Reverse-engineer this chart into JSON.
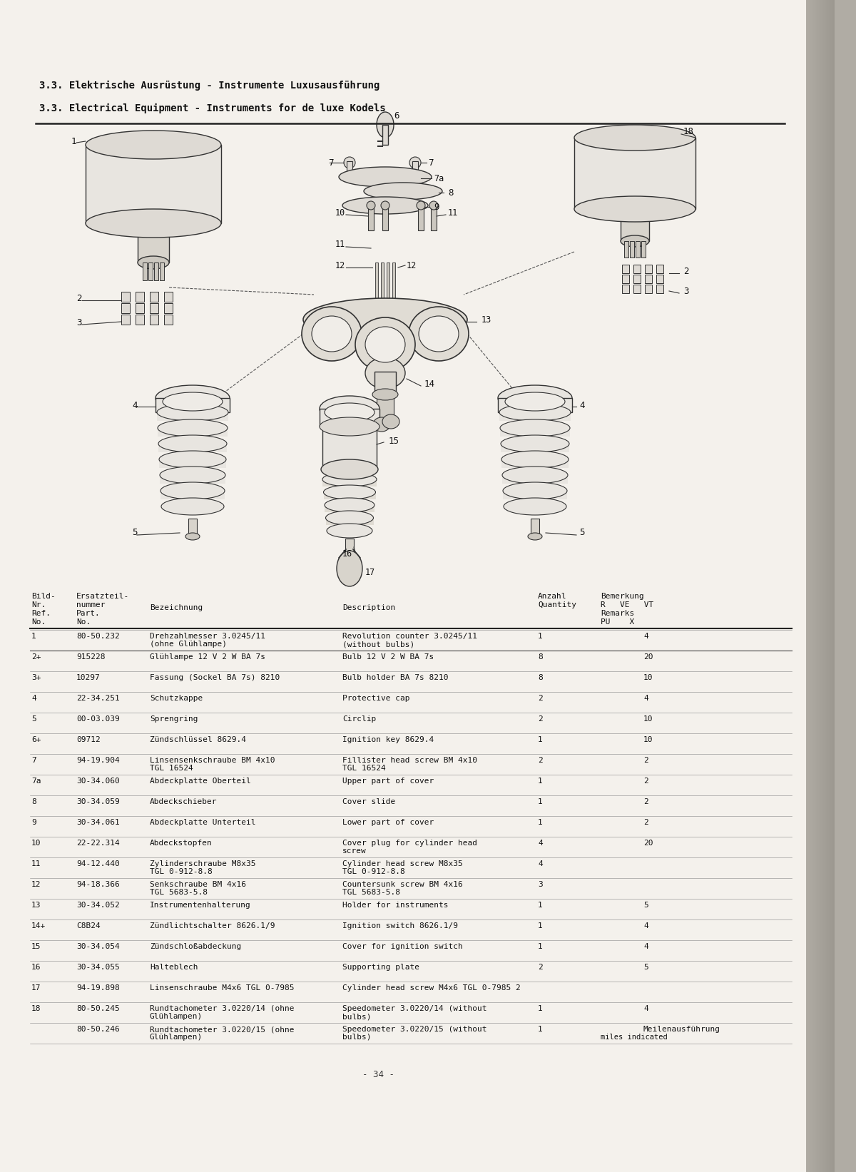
{
  "page_bg": "#f0ede8",
  "title_de": "3.3. Elektrische Ausrüstung - Instrumente Luxusausführung",
  "title_en": "3.3. Electrical Equipment - Instruments for de luxe Kodels",
  "parts": [
    {
      "no": "1",
      "part_no": "80-50.232",
      "bez": "Drehzahlmesser 3.0245/11\n(ohne Glühlampe)",
      "desc": "Revolution counter 3.0245/11\n(without bulbs)",
      "qty": "1",
      "rem": "4"
    },
    {
      "no": "2+",
      "part_no": "915228",
      "bez": "Glühlampe 12 V 2 W BA 7s",
      "desc": "Bulb 12 V 2 W BA 7s",
      "qty": "8",
      "rem": "20"
    },
    {
      "no": "3+",
      "part_no": "10297",
      "bez": "Fassung (Sockel BA 7s) 8210",
      "desc": "Bulb holder BA 7s 8210",
      "qty": "8",
      "rem": "10"
    },
    {
      "no": "4",
      "part_no": "22-34.251",
      "bez": "Schutzkappe",
      "desc": "Protective cap",
      "qty": "2",
      "rem": "4"
    },
    {
      "no": "5",
      "part_no": "00-03.039",
      "bez": "Sprengring",
      "desc": "Circlip",
      "qty": "2",
      "rem": "10"
    },
    {
      "no": "6+",
      "part_no": "09712",
      "bez": "Zündschlüssel 8629.4",
      "desc": "Ignition key 8629.4",
      "qty": "1",
      "rem": "10"
    },
    {
      "no": "7",
      "part_no": "94-19.904",
      "bez": "Linsensenkschraube BM 4x10\nTGL 16524",
      "desc": "Fillister head screw BM 4x10\nTGL 16524",
      "qty": "2",
      "rem": "2"
    },
    {
      "no": "7a",
      "part_no": "30-34.060",
      "bez": "Abdeckplatte Oberteil",
      "desc": "Upper part of cover",
      "qty": "1",
      "rem": "2"
    },
    {
      "no": "8",
      "part_no": "30-34.059",
      "bez": "Abdeckschieber",
      "desc": "Cover slide",
      "qty": "1",
      "rem": "2"
    },
    {
      "no": "9",
      "part_no": "30-34.061",
      "bez": "Abdeckplatte Unterteil",
      "desc": "Lower part of cover",
      "qty": "1",
      "rem": "2"
    },
    {
      "no": "10",
      "part_no": "22-22.314",
      "bez": "Abdeckstopfen",
      "desc": "Cover plug for cylinder head\nscrew",
      "qty": "4",
      "rem": "20"
    },
    {
      "no": "11",
      "part_no": "94-12.440",
      "bez": "Zylinderschraube M8x35\nTGL 0-912-8.8",
      "desc": "Cylinder head screw M8x35\nTGL 0-912-8.8",
      "qty": "4",
      "rem": ""
    },
    {
      "no": "12",
      "part_no": "94-18.366",
      "bez": "Senkschraube BM 4x16\nTGL 5683-5.8",
      "desc": "Countersunk screw BM 4x16\nTGL 5683-5.8",
      "qty": "3",
      "rem": ""
    },
    {
      "no": "13",
      "part_no": "30-34.052",
      "bez": "Instrumentenhalterung",
      "desc": "Holder for instruments",
      "qty": "1",
      "rem": "5"
    },
    {
      "no": "14+",
      "part_no": "C8B24",
      "bez": "Zündlichtschalter 8626.1/9",
      "desc": "Ignition switch 8626.1/9",
      "qty": "1",
      "rem": "4"
    },
    {
      "no": "15",
      "part_no": "30-34.054",
      "bez": "Zündschloßabdeckung",
      "desc": "Cover for ignition switch",
      "qty": "1",
      "rem": "4"
    },
    {
      "no": "16",
      "part_no": "30-34.055",
      "bez": "Halteblech",
      "desc": "Supporting plate",
      "qty": "2",
      "rem": "5"
    },
    {
      "no": "17",
      "part_no": "94-19.898",
      "bez": "Linsenschraube M4x6 TGL 0-7985",
      "desc": "Cylinder head screw M4x6 TGL 0-7985 2",
      "qty": "",
      "rem": ""
    },
    {
      "no": "18",
      "part_no": "80-50.245",
      "bez": "Rundtachometer 3.0220/14 (ohne\nGlühlampen)",
      "desc": "Speedometer 3.0220/14 (without\nbulbs)",
      "qty": "1",
      "rem": "4"
    },
    {
      "no": "",
      "part_no": "80-50.246",
      "bez": "Rundtachometer 3.0220/15 (ohne\nGlühlampen)",
      "desc": "Speedometer 3.0220/15 (without\nbulbs)",
      "qty": "1",
      "rem": "Meilenausführung\nmiles indicated"
    }
  ],
  "page_number": "- 34 -"
}
